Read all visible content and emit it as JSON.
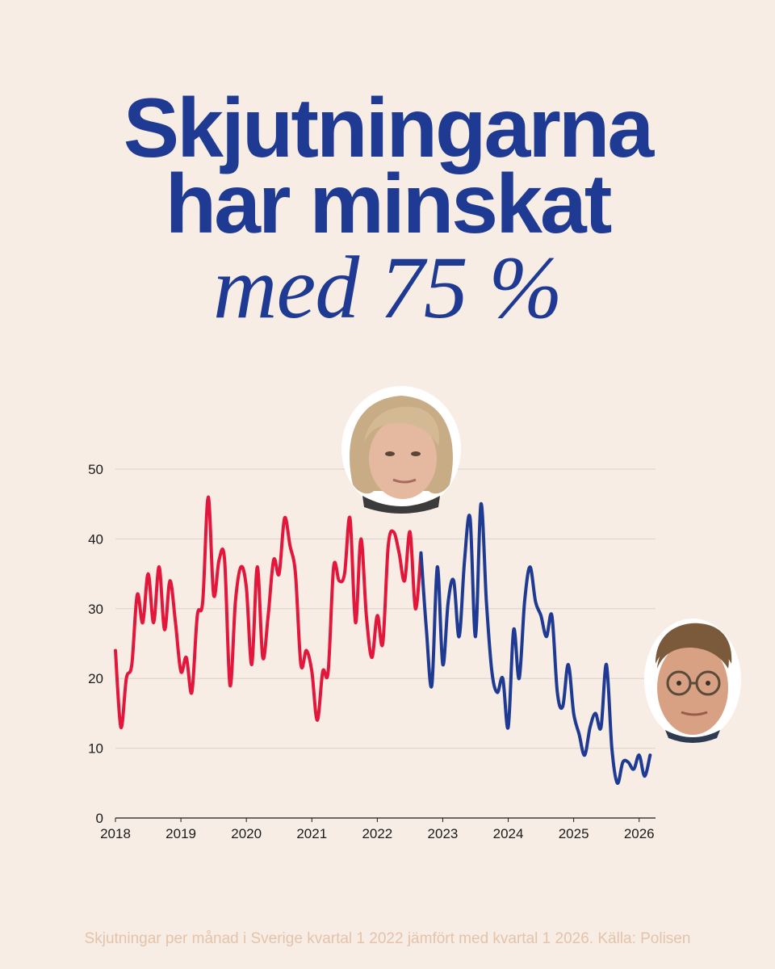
{
  "headline": {
    "line1": "Skjutningarna",
    "line2": "har minskat",
    "line3": "med 75 %"
  },
  "caption": "Skjutningar per månad i Sverige kvartal 1 2022 jämfört med kvartal 1 2026. Källa: Polisen",
  "colors": {
    "background": "#f7ede5",
    "headline": "#1f3a93",
    "series_red": "#e3163c",
    "series_blue": "#1f3a93",
    "caption": "#e3c3ab",
    "grid": "#d9d2cc"
  },
  "chart_data": {
    "type": "line",
    "title": "",
    "xlabel": "",
    "ylabel": "",
    "ylim": [
      0,
      50
    ],
    "yticks": [
      0,
      10,
      20,
      30,
      40,
      50
    ],
    "xlim": [
      2018,
      2026.25
    ],
    "xticks": [
      "2018",
      "2019",
      "2020",
      "2021",
      "2022",
      "2023",
      "2024",
      "2025",
      "2026"
    ],
    "grid": "horizontal",
    "legend": "none",
    "series": [
      {
        "color": "#e3163c",
        "x": [
          2018.0,
          2018.083,
          2018.167,
          2018.25,
          2018.333,
          2018.417,
          2018.5,
          2018.583,
          2018.667,
          2018.75,
          2018.833,
          2018.917,
          2019.0,
          2019.083,
          2019.167,
          2019.25,
          2019.333,
          2019.417,
          2019.5,
          2019.583,
          2019.667,
          2019.75,
          2019.833,
          2019.917,
          2020.0,
          2020.083,
          2020.167,
          2020.25,
          2020.333,
          2020.417,
          2020.5,
          2020.583,
          2020.667,
          2020.75,
          2020.833,
          2020.917,
          2021.0,
          2021.083,
          2021.167,
          2021.25,
          2021.333,
          2021.417,
          2021.5,
          2021.583,
          2021.667,
          2021.75,
          2021.833,
          2021.917,
          2022.0,
          2022.083,
          2022.167,
          2022.25,
          2022.333,
          2022.417,
          2022.5,
          2022.583,
          2022.667
        ],
        "y": [
          24,
          13,
          20,
          22,
          32,
          28,
          35,
          28,
          36,
          27,
          34,
          28,
          21,
          23,
          18,
          29,
          31,
          46,
          32,
          37,
          37,
          19,
          31,
          36,
          33,
          22,
          36,
          23,
          29,
          37,
          35,
          43,
          39,
          35,
          22,
          24,
          21,
          14,
          21,
          21,
          36,
          34,
          35,
          43,
          28,
          40,
          29,
          23,
          29,
          25,
          39,
          41,
          38,
          34,
          41,
          30,
          38
        ]
      },
      {
        "color": "#1f3a93",
        "x": [
          2022.667,
          2022.75,
          2022.833,
          2022.917,
          2023.0,
          2023.083,
          2023.167,
          2023.25,
          2023.333,
          2023.417,
          2023.5,
          2023.583,
          2023.667,
          2023.75,
          2023.833,
          2023.917,
          2024.0,
          2024.083,
          2024.167,
          2024.25,
          2024.333,
          2024.417,
          2024.5,
          2024.583,
          2024.667,
          2024.75,
          2024.833,
          2024.917,
          2025.0,
          2025.083,
          2025.167,
          2025.25,
          2025.333,
          2025.417,
          2025.5,
          2025.583,
          2025.667,
          2025.75,
          2025.833,
          2025.917,
          2026.0,
          2026.083,
          2026.167
        ],
        "y": [
          38,
          27,
          19,
          36,
          22,
          31,
          34,
          26,
          37,
          43,
          26,
          45,
          31,
          21,
          18,
          20,
          13,
          27,
          20,
          31,
          36,
          31,
          29,
          26,
          29,
          18,
          16,
          22,
          15,
          12,
          9,
          13,
          15,
          13,
          22,
          10,
          5,
          8,
          8,
          7,
          9,
          6,
          9
        ]
      }
    ]
  }
}
